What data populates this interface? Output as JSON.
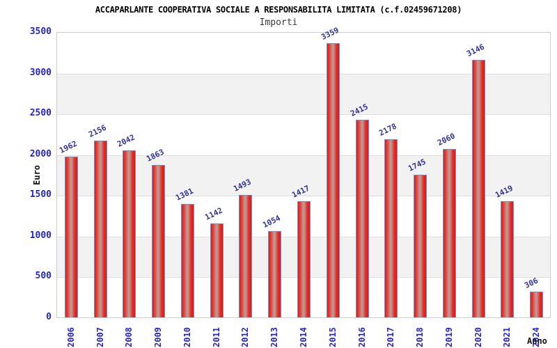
{
  "chart_data": {
    "type": "bar",
    "title": "ACCAPARLANTE COOPERATIVA SOCIALE A RESPONSABILITA LIMITATA (c.f.02459671208)",
    "subtitle": "Importi",
    "ylabel": "Euro",
    "xlabel": "Anno",
    "categories": [
      "2006",
      "2007",
      "2008",
      "2009",
      "2010",
      "2011",
      "2012",
      "2013",
      "2014",
      "2015",
      "2016",
      "2017",
      "2018",
      "2019",
      "2020",
      "2021",
      "2024"
    ],
    "values": [
      1962,
      2156,
      2042,
      1863,
      1381,
      1142,
      1493,
      1054,
      1417,
      3359,
      2415,
      2178,
      1745,
      2060,
      3146,
      1419,
      306
    ],
    "ylim": [
      0,
      3500
    ],
    "ytick_step": 500,
    "grid": "horizontal-bands-alternating",
    "legend": null,
    "layout": {
      "legend_position": "none",
      "value_labels": "rotated-above-bars",
      "x_tick_rotation": 90
    },
    "colors": {
      "bar_fill": "#e61717",
      "bar_highlight": "#c09a95",
      "bar_border": "#5b9bd8",
      "value_label": "#33339b",
      "axis_tick": "#2525cc",
      "band": "#f2f2f2",
      "gridline": "#dedede",
      "plot_border": "#cccccc",
      "title": "#000000",
      "subtitle": "#3a3a3a"
    }
  }
}
